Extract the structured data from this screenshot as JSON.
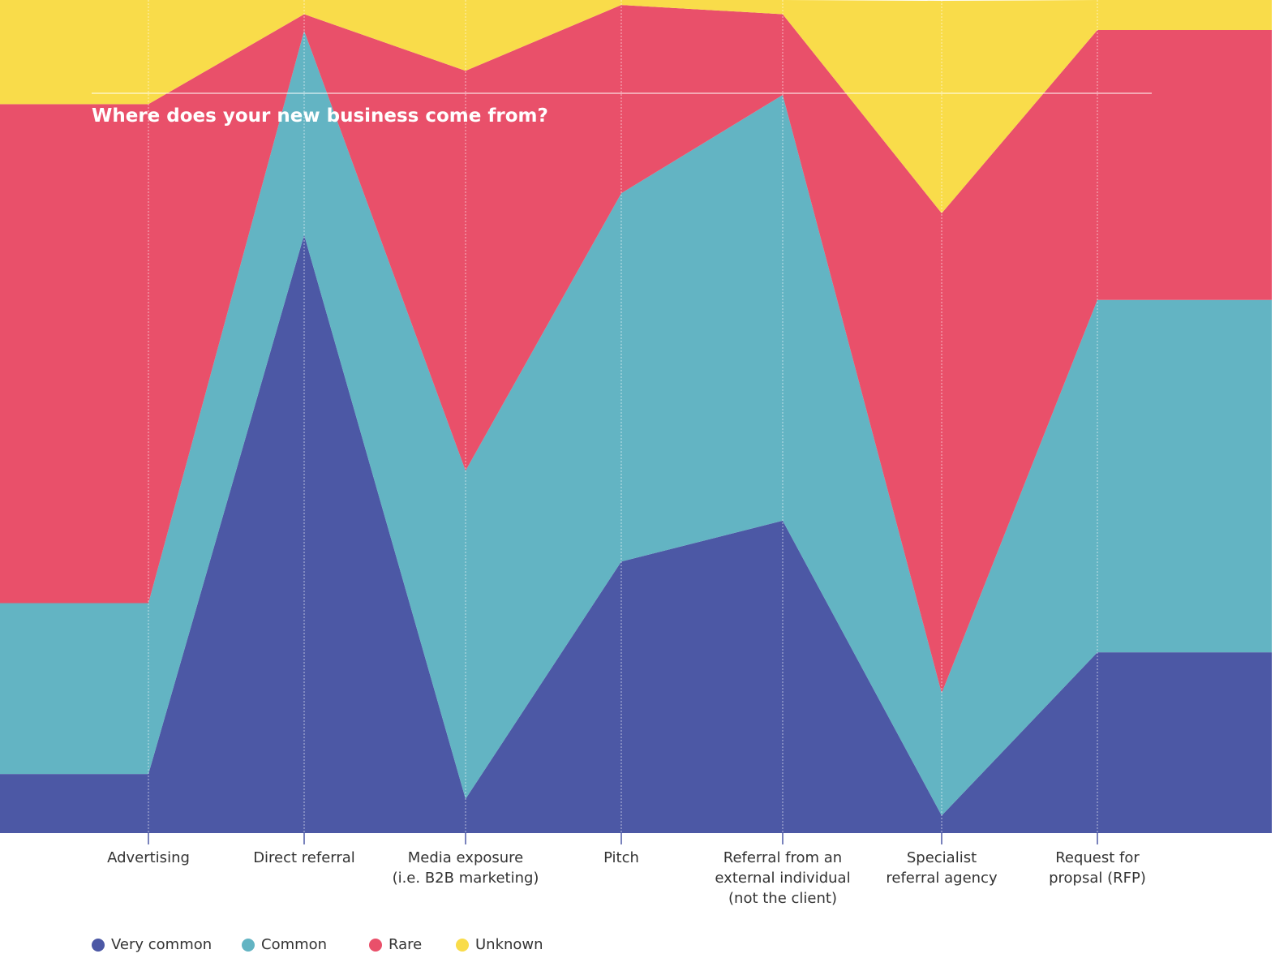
{
  "chart_data": {
    "type": "stacked_area",
    "title": "Where does your new business come from?",
    "categories": [
      "Advertising",
      "Direct referral",
      "Media exposure\n(i.e. B2B marketing)",
      "Pitch",
      "Referral from an\nexternal individual\n(not the client)",
      "Specialist\nreferral agency",
      "Request for\npropsal (RFP)"
    ],
    "ylim": [
      0,
      100
    ],
    "series": [
      {
        "name": "Very common",
        "color": "#4c58a5",
        "values": [
          7.1,
          71.8,
          4.1,
          32.6,
          37.5,
          2.1,
          21.7
        ]
      },
      {
        "name": "Common",
        "color": "#63b4c3",
        "values": [
          20.5,
          24.5,
          39.4,
          44.2,
          51.1,
          14.7,
          42.3
        ]
      },
      {
        "name": "Rare",
        "color": "#e9506a",
        "values": [
          59.9,
          2.0,
          48.0,
          22.6,
          9.7,
          57.6,
          32.4
        ]
      },
      {
        "name": "Unknown",
        "color": "#f9dc4a",
        "values": [
          12.5,
          1.7,
          8.5,
          0.6,
          1.7,
          25.5,
          3.6
        ]
      }
    ]
  }
}
